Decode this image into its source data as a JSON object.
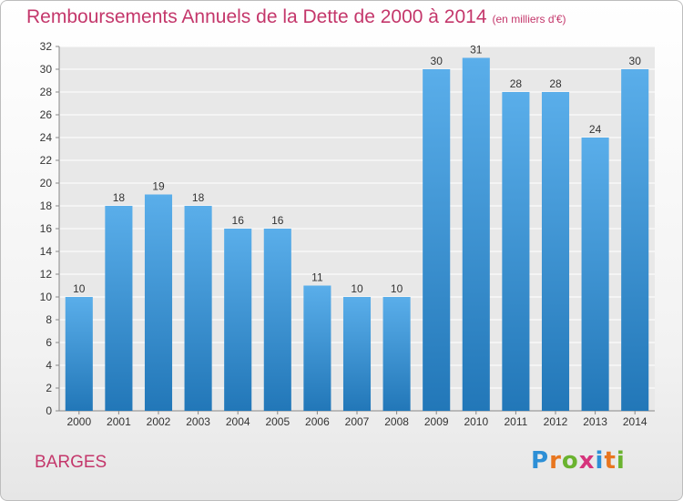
{
  "header": {
    "title": "Remboursements Annuels de la Dette de 2000 à 2014",
    "unit": "(en milliers d'€)"
  },
  "footer": {
    "town": "BARGES",
    "brand": {
      "letters": [
        "P",
        "r",
        "o",
        "x",
        "i",
        "t",
        "i"
      ],
      "colors": [
        "#2d8fd6",
        "#e8761f",
        "#6ab32f",
        "#d6347c",
        "#2d8fd6",
        "#e8761f",
        "#6ab32f"
      ]
    }
  },
  "chart_data": {
    "type": "bar",
    "title": "Remboursements Annuels de la Dette de 2000 à 2014",
    "xlabel": "",
    "ylabel": "",
    "categories": [
      "2000",
      "2001",
      "2002",
      "2003",
      "2004",
      "2005",
      "2006",
      "2007",
      "2008",
      "2009",
      "2010",
      "2011",
      "2012",
      "2013",
      "2014"
    ],
    "values": [
      10,
      18,
      19,
      18,
      16,
      16,
      11,
      10,
      10,
      30,
      31,
      28,
      28,
      24,
      30
    ],
    "ylim": [
      0,
      32
    ],
    "yticks": [
      0,
      2,
      4,
      6,
      8,
      10,
      12,
      14,
      16,
      18,
      20,
      22,
      24,
      26,
      28,
      30,
      32
    ],
    "grid": true,
    "bar_color_top": "#5aaeea",
    "bar_color_bottom": "#2277b8",
    "plot_background": "#e8e8e8",
    "grid_color": "#ffffff"
  }
}
